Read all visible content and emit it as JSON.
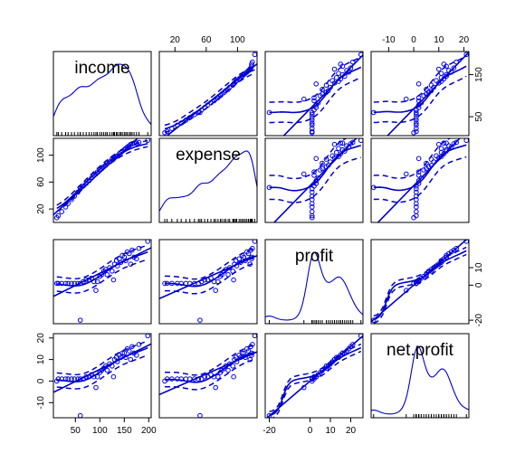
{
  "chart_data": {
    "type": "scatter",
    "variables": [
      {
        "name": "income",
        "range": [
          5,
          205
        ],
        "ticks": [
          50,
          100,
          150,
          200
        ]
      },
      {
        "name": "expense",
        "range": [
          0,
          125
        ],
        "ticks": [
          20,
          60,
          100
        ]
      },
      {
        "name": "profit",
        "range": [
          -22,
          26
        ],
        "ticks": [
          -20,
          0,
          10,
          20
        ]
      },
      {
        "name": "net.profit",
        "range": [
          -17,
          22
        ],
        "ticks": [
          -10,
          0,
          10,
          20
        ]
      }
    ],
    "tick_labels": {
      "top": [
        {
          "var": 1,
          "labels": [
            "20",
            "60",
            "100"
          ],
          "values": [
            20,
            60,
            100
          ]
        },
        {
          "var": 3,
          "labels": [
            "-10",
            "0",
            "10",
            "20"
          ],
          "values": [
            -10,
            0,
            10,
            20
          ]
        }
      ],
      "right": [
        {
          "var": 0,
          "labels": [
            "50",
            "150"
          ],
          "values": [
            50,
            150
          ]
        },
        {
          "var": 2,
          "labels": [
            "-20",
            "0",
            "10"
          ],
          "values": [
            -20,
            0,
            10
          ]
        }
      ],
      "bottom": [
        {
          "var": 0,
          "labels": [
            "50",
            "100",
            "150",
            "200"
          ],
          "values": [
            50,
            100,
            150,
            200
          ]
        },
        {
          "var": 2,
          "labels": [
            "-20",
            "0",
            "10",
            "20"
          ],
          "values": [
            -20,
            0,
            10,
            20
          ]
        }
      ],
      "left": [
        {
          "var": 1,
          "labels": [
            "20",
            "60",
            "100"
          ],
          "values": [
            20,
            60,
            100
          ]
        },
        {
          "var": 3,
          "labels": [
            "-10",
            "0",
            "10",
            "20"
          ],
          "values": [
            -10,
            0,
            10,
            20
          ]
        }
      ]
    },
    "observations": [
      [
        12,
        7,
        1,
        0
      ],
      [
        15,
        10,
        1,
        1
      ],
      [
        22,
        16,
        1,
        1
      ],
      [
        30,
        23,
        1,
        1
      ],
      [
        35,
        28,
        1,
        1
      ],
      [
        42,
        34,
        1,
        1
      ],
      [
        48,
        39,
        1,
        1
      ],
      [
        55,
        45,
        1,
        1
      ],
      [
        60,
        50,
        1,
        1
      ],
      [
        66,
        54,
        2,
        1
      ],
      [
        72,
        58,
        3,
        2
      ],
      [
        78,
        62,
        3,
        2
      ],
      [
        83,
        66,
        4,
        3
      ],
      [
        88,
        70,
        2,
        2
      ],
      [
        92,
        72,
        -3,
        -3
      ],
      [
        95,
        75,
        2,
        2
      ],
      [
        100,
        78,
        5,
        4
      ],
      [
        104,
        80,
        6,
        5
      ],
      [
        108,
        83,
        8,
        6
      ],
      [
        112,
        85,
        9,
        7
      ],
      [
        115,
        88,
        6,
        5
      ],
      [
        120,
        90,
        10,
        8
      ],
      [
        125,
        94,
        8,
        7
      ],
      [
        128,
        95,
        3,
        2
      ],
      [
        130,
        96,
        12,
        10
      ],
      [
        134,
        98,
        14,
        11
      ],
      [
        136,
        99,
        11,
        9
      ],
      [
        140,
        102,
        15,
        12
      ],
      [
        143,
        104,
        13,
        11
      ],
      [
        146,
        106,
        17,
        13
      ],
      [
        150,
        108,
        16,
        13
      ],
      [
        153,
        110,
        14,
        11
      ],
      [
        156,
        112,
        19,
        15
      ],
      [
        160,
        114,
        18,
        14
      ],
      [
        163,
        116,
        12,
        10
      ],
      [
        166,
        117,
        20,
        16
      ],
      [
        170,
        118,
        16,
        13
      ],
      [
        175,
        118,
        15,
        12
      ],
      [
        180,
        119,
        21,
        17
      ],
      [
        198,
        122,
        25,
        21
      ],
      [
        60,
        52,
        -20,
        -16
      ]
    ]
  }
}
